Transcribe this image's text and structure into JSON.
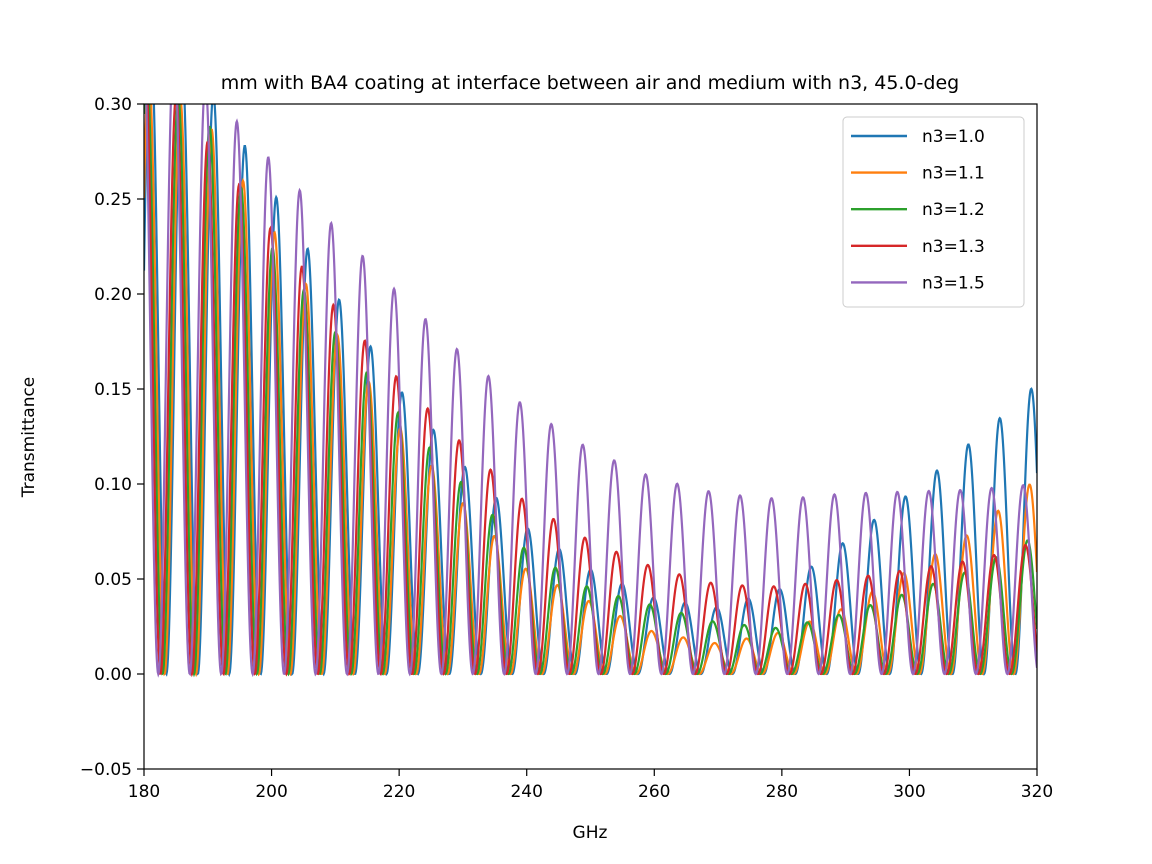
{
  "chart_data": {
    "type": "line",
    "title": "mm with BA4 coating at interface between air and medium with n3, 45.0-deg",
    "xlabel": "GHz",
    "ylabel": "Transmittance",
    "xlim": [
      180,
      320
    ],
    "ylim": [
      -0.05,
      0.3
    ],
    "xticks": [
      180,
      200,
      220,
      240,
      260,
      280,
      300,
      320
    ],
    "yticks": [
      -0.05,
      0.0,
      0.05,
      0.1,
      0.15,
      0.2,
      0.25,
      0.3
    ],
    "ytick_labels": [
      "−0.05",
      "0.00",
      "0.05",
      "0.10",
      "0.15",
      "0.20",
      "0.25",
      "0.30"
    ],
    "xtick_labels": [
      "180",
      "200",
      "220",
      "240",
      "260",
      "280",
      "300",
      "320"
    ],
    "legend_position": "top-right",
    "grid": false,
    "series": [
      {
        "name": "n3=1.0",
        "color": "#1f77b4",
        "phase": 0.0,
        "envelope": [
          [
            180,
            0.34
          ],
          [
            190,
            0.31
          ],
          [
            200,
            0.255
          ],
          [
            210,
            0.2
          ],
          [
            220,
            0.15
          ],
          [
            230,
            0.11
          ],
          [
            240,
            0.077
          ],
          [
            250,
            0.055
          ],
          [
            260,
            0.04
          ],
          [
            270,
            0.035
          ],
          [
            280,
            0.045
          ],
          [
            290,
            0.07
          ],
          [
            300,
            0.095
          ],
          [
            310,
            0.123
          ],
          [
            315,
            0.137
          ],
          [
            320,
            0.153
          ]
        ]
      },
      {
        "name": "n3=1.1",
        "color": "#ff7f0e",
        "phase": 0.35,
        "envelope": [
          [
            180,
            0.32
          ],
          [
            190,
            0.29
          ],
          [
            200,
            0.235
          ],
          [
            210,
            0.18
          ],
          [
            220,
            0.13
          ],
          [
            230,
            0.09
          ],
          [
            240,
            0.055
          ],
          [
            250,
            0.038
          ],
          [
            260,
            0.022
          ],
          [
            270,
            0.016
          ],
          [
            280,
            0.022
          ],
          [
            290,
            0.035
          ],
          [
            300,
            0.055
          ],
          [
            310,
            0.075
          ],
          [
            320,
            0.103
          ]
        ]
      },
      {
        "name": "n3=1.2",
        "color": "#2ca02c",
        "phase": 0.75,
        "envelope": [
          [
            180,
            0.32
          ],
          [
            190,
            0.29
          ],
          [
            200,
            0.225
          ],
          [
            210,
            0.18
          ],
          [
            220,
            0.137
          ],
          [
            230,
            0.1
          ],
          [
            240,
            0.065
          ],
          [
            250,
            0.045
          ],
          [
            260,
            0.036
          ],
          [
            270,
            0.027
          ],
          [
            280,
            0.024
          ],
          [
            290,
            0.032
          ],
          [
            300,
            0.043
          ],
          [
            310,
            0.055
          ],
          [
            320,
            0.073
          ]
        ]
      },
      {
        "name": "n3=1.3",
        "color": "#d62728",
        "phase": 1.15,
        "envelope": [
          [
            180,
            0.33
          ],
          [
            190,
            0.28
          ],
          [
            200,
            0.234
          ],
          [
            210,
            0.193
          ],
          [
            220,
            0.155
          ],
          [
            230,
            0.121
          ],
          [
            240,
            0.09
          ],
          [
            250,
            0.07
          ],
          [
            260,
            0.056
          ],
          [
            270,
            0.047
          ],
          [
            280,
            0.046
          ],
          [
            290,
            0.05
          ],
          [
            300,
            0.055
          ],
          [
            310,
            0.06
          ],
          [
            315,
            0.064
          ],
          [
            320,
            0.07
          ]
        ]
      },
      {
        "name": "n3=1.5",
        "color": "#9467bd",
        "phase": 1.6,
        "envelope": [
          [
            180,
            0.35
          ],
          [
            190,
            0.31
          ],
          [
            195,
            0.289
          ],
          [
            200,
            0.27
          ],
          [
            210,
            0.235
          ],
          [
            220,
            0.2
          ],
          [
            230,
            0.168
          ],
          [
            240,
            0.14
          ],
          [
            250,
            0.118
          ],
          [
            260,
            0.103
          ],
          [
            270,
            0.095
          ],
          [
            280,
            0.092
          ],
          [
            290,
            0.095
          ],
          [
            300,
            0.096
          ],
          [
            310,
            0.097
          ],
          [
            320,
            0.1
          ]
        ]
      }
    ]
  }
}
